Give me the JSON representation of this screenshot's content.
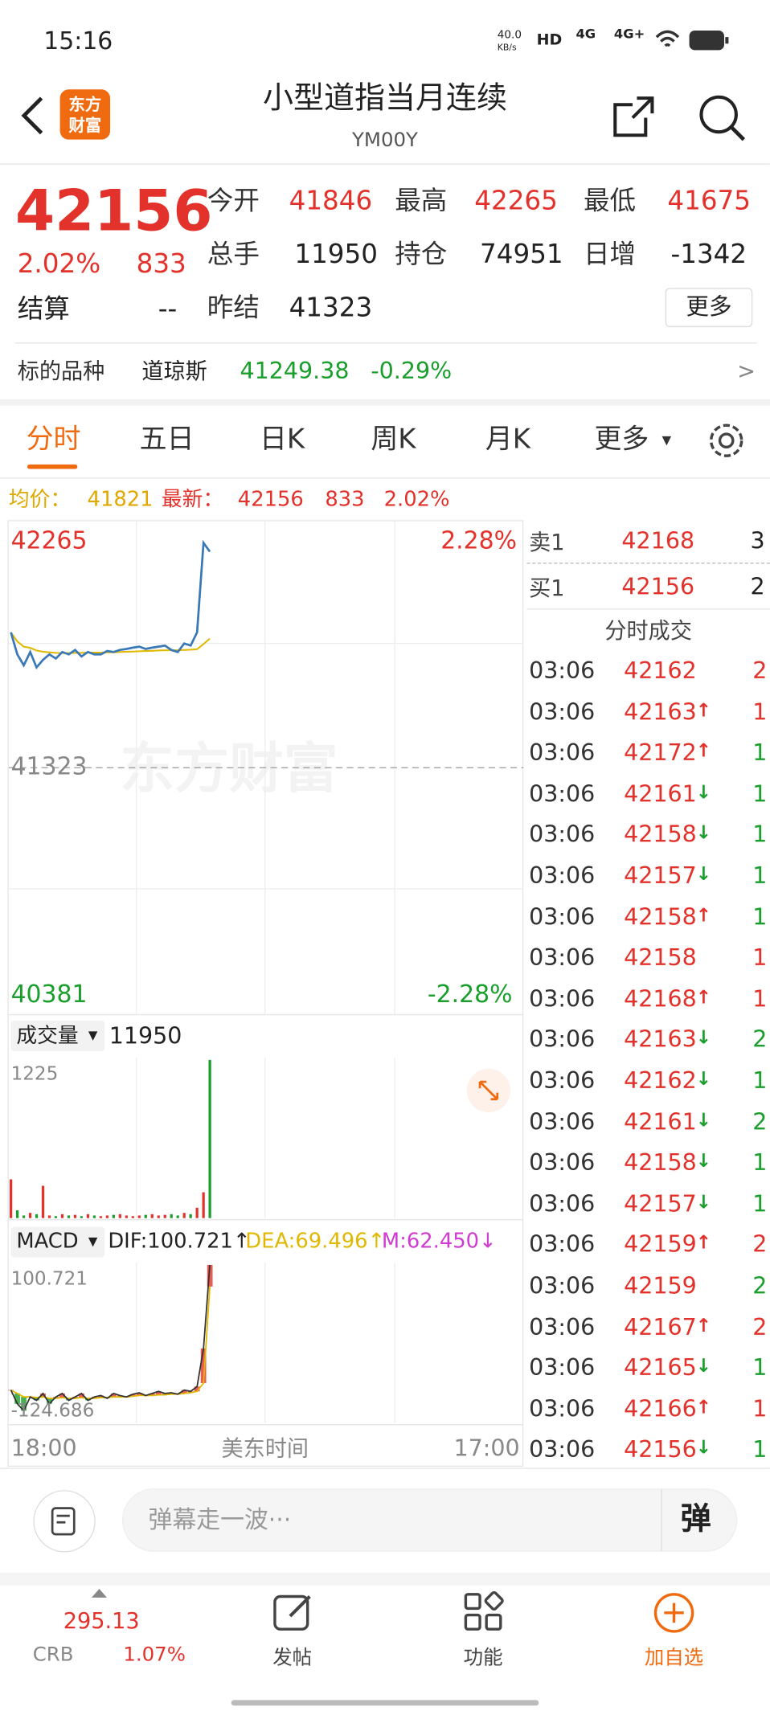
{
  "status_bar": {
    "time": "15:16",
    "speed_value": "40.0",
    "speed_unit": "KB/s",
    "hd": "HD",
    "net1": "4G",
    "net2": "4G+"
  },
  "header": {
    "logo": "东方财富",
    "title": "小型道指当月连续",
    "code": "YM00Y"
  },
  "quote": {
    "price": 42156,
    "change_pct": "2.02%",
    "change": 833,
    "settle_label": "结算",
    "settle": "--",
    "more": "更多",
    "fields": [
      {
        "label": "今开",
        "value": 41846,
        "color": "#e3322b"
      },
      {
        "label": "最高",
        "value": 42265,
        "color": "#e3322b"
      },
      {
        "label": "最低",
        "value": 41675,
        "color": "#e3322b"
      },
      {
        "label": "总手",
        "value": 11950,
        "color": "#222222"
      },
      {
        "label": "持仓",
        "value": 74951,
        "color": "#222222"
      },
      {
        "label": "日增",
        "value": -1342,
        "color": "#222222"
      },
      {
        "label": "昨结",
        "value": 41323,
        "color": "#222222"
      }
    ]
  },
  "underlying": {
    "label": "标的品种",
    "name": "道琼斯",
    "price": 41249.38,
    "change": "-0.29%",
    "arrow": ">"
  },
  "tabs": [
    "分时",
    "五日",
    "日K",
    "周K",
    "月K",
    "更多"
  ],
  "info": {
    "avg_label": "均价：",
    "avg": 41821,
    "latest_label": "最新：",
    "latest": 42156,
    "change": 833,
    "change_pct": "2.02%"
  },
  "price_chart": {
    "ylim": [
      40381,
      42265
    ],
    "ref": 41323,
    "pct_high": "2.28%",
    "pct_low": "-2.28%",
    "watermark": "东方财富",
    "price": [
      41845,
      41760,
      41718,
      41769,
      41710,
      41739,
      41760,
      41744,
      41769,
      41760,
      41777,
      41752,
      41769,
      41760,
      41760,
      41773,
      41769,
      41777,
      41781,
      41786,
      41790,
      41781,
      41786,
      41790,
      41794,
      41777,
      41769,
      41802,
      41794,
      41845,
      42190,
      42156
    ],
    "avg": [
      41845,
      41810,
      41790,
      41785,
      41775,
      41770,
      41768,
      41766,
      41765,
      41765,
      41766,
      41766,
      41767,
      41767,
      41767,
      41768,
      41768,
      41769,
      41770,
      41771,
      41772,
      41773,
      41774,
      41775,
      41776,
      41776,
      41776,
      41777,
      41778,
      41780,
      41800,
      41821
    ]
  },
  "volume_chart": {
    "selector": "成交量",
    "total": 11950,
    "ylim": [
      0,
      1225
    ],
    "values": [
      300,
      60,
      20,
      40,
      30,
      250,
      20,
      15,
      30,
      20,
      25,
      15,
      30,
      20,
      15,
      20,
      25,
      30,
      20,
      15,
      20,
      25,
      30,
      20,
      25,
      30,
      20,
      40,
      30,
      80,
      200,
      1225
    ]
  },
  "macd_chart": {
    "selector": "MACD",
    "dif": "DIF:100.721↑",
    "dea": "DEA:69.496↑",
    "m": "M:62.450↓",
    "ylim": [
      -124.686,
      100.721
    ],
    "dif_values": [
      -80,
      -100,
      -110,
      -90,
      -95,
      -85,
      -100,
      -90,
      -85,
      -95,
      -90,
      -85,
      -95,
      -90,
      -88,
      -92,
      -85,
      -88,
      -90,
      -86,
      -84,
      -88,
      -85,
      -82,
      -85,
      -84,
      -86,
      -80,
      -82,
      -75,
      -20,
      100.721
    ],
    "dea_values": [
      -80,
      -85,
      -90,
      -90,
      -91,
      -90,
      -92,
      -92,
      -91,
      -92,
      -92,
      -91,
      -92,
      -92,
      -91,
      -91,
      -90,
      -90,
      -90,
      -89,
      -88,
      -88,
      -88,
      -87,
      -87,
      -86,
      -86,
      -85,
      -84,
      -82,
      -70,
      69.496
    ]
  },
  "x_axis": {
    "start": "18:00",
    "label": "美东时间",
    "end": "17:00"
  },
  "order_book": {
    "ask": {
      "label": "卖1",
      "price": 42168,
      "volume": 3
    },
    "bid": {
      "label": "买1",
      "price": 42156,
      "volume": 2
    },
    "title": "分时成交",
    "trades": [
      {
        "time": "03:06",
        "price": 42162,
        "volume": 2,
        "volume_color": "#e3322b"
      },
      {
        "time": "03:06",
        "price": 42163,
        "arrow": "↑",
        "volume": 1,
        "volume_color": "#e3322b"
      },
      {
        "time": "03:06",
        "price": 42172,
        "arrow": "↑",
        "volume": 1,
        "volume_color": "#1a9e2c"
      },
      {
        "time": "03:06",
        "price": 42161,
        "arrow": "↓",
        "volume": 1,
        "volume_color": "#1a9e2c"
      },
      {
        "time": "03:06",
        "price": 42158,
        "arrow": "↓",
        "volume": 1,
        "volume_color": "#1a9e2c"
      },
      {
        "time": "03:06",
        "price": 42157,
        "arrow": "↓",
        "volume": 1,
        "volume_color": "#1a9e2c"
      },
      {
        "time": "03:06",
        "price": 42158,
        "arrow": "↑",
        "volume": 1,
        "volume_color": "#1a9e2c"
      },
      {
        "time": "03:06",
        "price": 42158,
        "volume": 1,
        "volume_color": "#e3322b"
      },
      {
        "time": "03:06",
        "price": 42168,
        "arrow": "↑",
        "volume": 1,
        "volume_color": "#e3322b"
      },
      {
        "time": "03:06",
        "price": 42163,
        "arrow": "↓",
        "volume": 2,
        "volume_color": "#1a9e2c"
      },
      {
        "time": "03:06",
        "price": 42162,
        "arrow": "↓",
        "volume": 1,
        "volume_color": "#1a9e2c"
      },
      {
        "time": "03:06",
        "price": 42161,
        "arrow": "↓",
        "volume": 2,
        "volume_color": "#1a9e2c"
      },
      {
        "time": "03:06",
        "price": 42158,
        "arrow": "↓",
        "volume": 1,
        "volume_color": "#1a9e2c"
      },
      {
        "time": "03:06",
        "price": 42157,
        "arrow": "↓",
        "volume": 1,
        "volume_color": "#1a9e2c"
      },
      {
        "time": "03:06",
        "price": 42159,
        "arrow": "↑",
        "volume": 2,
        "volume_color": "#e3322b"
      },
      {
        "time": "03:06",
        "price": 42159,
        "volume": 2,
        "volume_color": "#1a9e2c"
      },
      {
        "time": "03:06",
        "price": 42167,
        "arrow": "↑",
        "volume": 2,
        "volume_color": "#e3322b"
      },
      {
        "time": "03:06",
        "price": 42165,
        "arrow": "↓",
        "volume": 1,
        "volume_color": "#1a9e2c"
      },
      {
        "time": "03:06",
        "price": 42166,
        "arrow": "↑",
        "volume": 1,
        "volume_color": "#e3322b"
      },
      {
        "time": "03:06",
        "price": 42156,
        "arrow": "↓",
        "volume": 1,
        "volume_color": "#1a9e2c"
      }
    ]
  },
  "comment": {
    "placeholder": "弹幕走一波···",
    "button": "弹"
  },
  "nav": {
    "index_price": 295.13,
    "index_name": "CRB",
    "index_change": "1.07%",
    "items": [
      "发帖",
      "功能",
      "加自选"
    ]
  }
}
